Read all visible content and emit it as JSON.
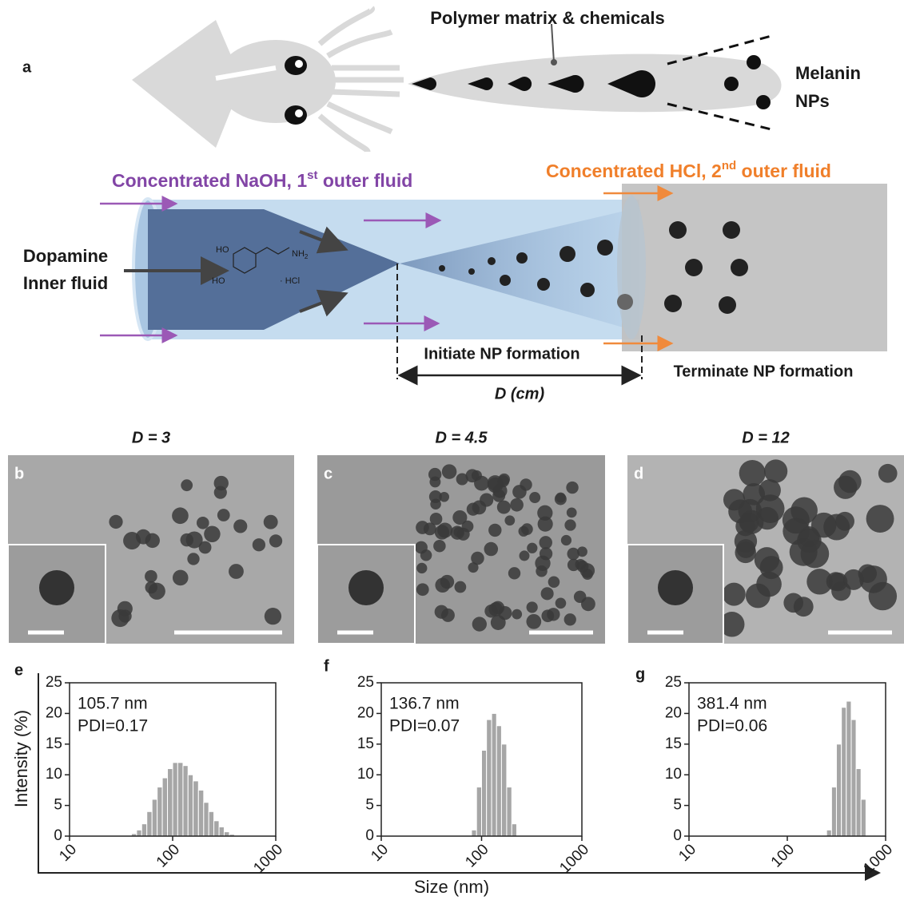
{
  "panel_a": {
    "label": "a",
    "polymer_label": "Polymer matrix & chemicals",
    "melanin_label": [
      "Melanin",
      "NPs"
    ],
    "naoh_label": {
      "text": "Concentrated NaOH, 1",
      "sup": "st",
      "tail": " outer fluid"
    },
    "hcl_label": {
      "text": "Concentrated HCl, 2",
      "sup": "nd",
      "tail": " outer fluid"
    },
    "dopamine_label": [
      "Dopamine",
      "Inner fluid"
    ],
    "molecule": {
      "oh_top": "HO",
      "oh_bottom": "HO",
      "amine": "NH",
      "amine_sub": "2",
      "salt": "· HCl"
    },
    "initiate_label": "Initiate NP formation",
    "terminate_label": "Terminate NP formation",
    "distance_label": "D (cm)"
  },
  "tem_panels": [
    {
      "label": "b",
      "title": "D = 3"
    },
    {
      "label": "c",
      "title": "D = 4.5"
    },
    {
      "label": "d",
      "title": "D = 12"
    }
  ],
  "shared_axes": {
    "ylabel": "Intensity (%)",
    "xlabel": "Size (nm)"
  },
  "chart_data": [
    {
      "type": "histogram",
      "label": "e",
      "annotation": [
        "105.7 nm",
        "PDI=0.17"
      ],
      "color": "#a6a6a6",
      "xscale": "log",
      "bins": [
        39.8,
        44.7,
        50.1,
        56.2,
        63.1,
        70.8,
        79.4,
        89.1,
        100,
        112,
        126,
        141,
        158,
        178,
        200,
        224,
        251,
        282,
        316,
        355,
        398
      ],
      "counts": [
        0.4,
        1,
        2,
        4,
        6,
        8,
        9.5,
        11,
        12,
        12,
        11.5,
        10,
        9,
        7.5,
        5.5,
        4,
        2.5,
        1.5,
        0.7,
        0.3
      ],
      "xlim": [
        10,
        1000
      ],
      "xticks": [
        10,
        100,
        1000
      ],
      "ylim": [
        0,
        25
      ],
      "yticks": [
        0,
        5,
        10,
        15,
        20,
        25
      ]
    },
    {
      "type": "histogram",
      "label": "f",
      "annotation": [
        "136.7 nm",
        "PDI=0.07"
      ],
      "color": "#a6a6a6",
      "xscale": "log",
      "bins": [
        79.4,
        89.1,
        100,
        112,
        126,
        141,
        158,
        178,
        200,
        224
      ],
      "counts": [
        1,
        8,
        14,
        19,
        20,
        18,
        15,
        8,
        2
      ],
      "xlim": [
        10,
        1000
      ],
      "xticks": [
        10,
        100,
        1000
      ],
      "ylim": [
        0,
        25
      ],
      "yticks": [
        0,
        5,
        10,
        15,
        20,
        25
      ]
    },
    {
      "type": "histogram",
      "label": "g",
      "annotation": [
        "381.4 nm",
        "PDI=0.06"
      ],
      "color": "#a6a6a6",
      "xscale": "log",
      "bins": [
        251,
        282,
        316,
        355,
        398,
        447,
        501,
        562,
        631
      ],
      "counts": [
        1,
        8,
        15,
        21,
        22,
        19,
        11,
        6
      ],
      "xlim": [
        10,
        1000
      ],
      "xticks": [
        10,
        100,
        1000
      ],
      "ylim": [
        0,
        25
      ],
      "yticks": [
        0,
        5,
        10,
        15,
        20,
        25
      ]
    }
  ]
}
